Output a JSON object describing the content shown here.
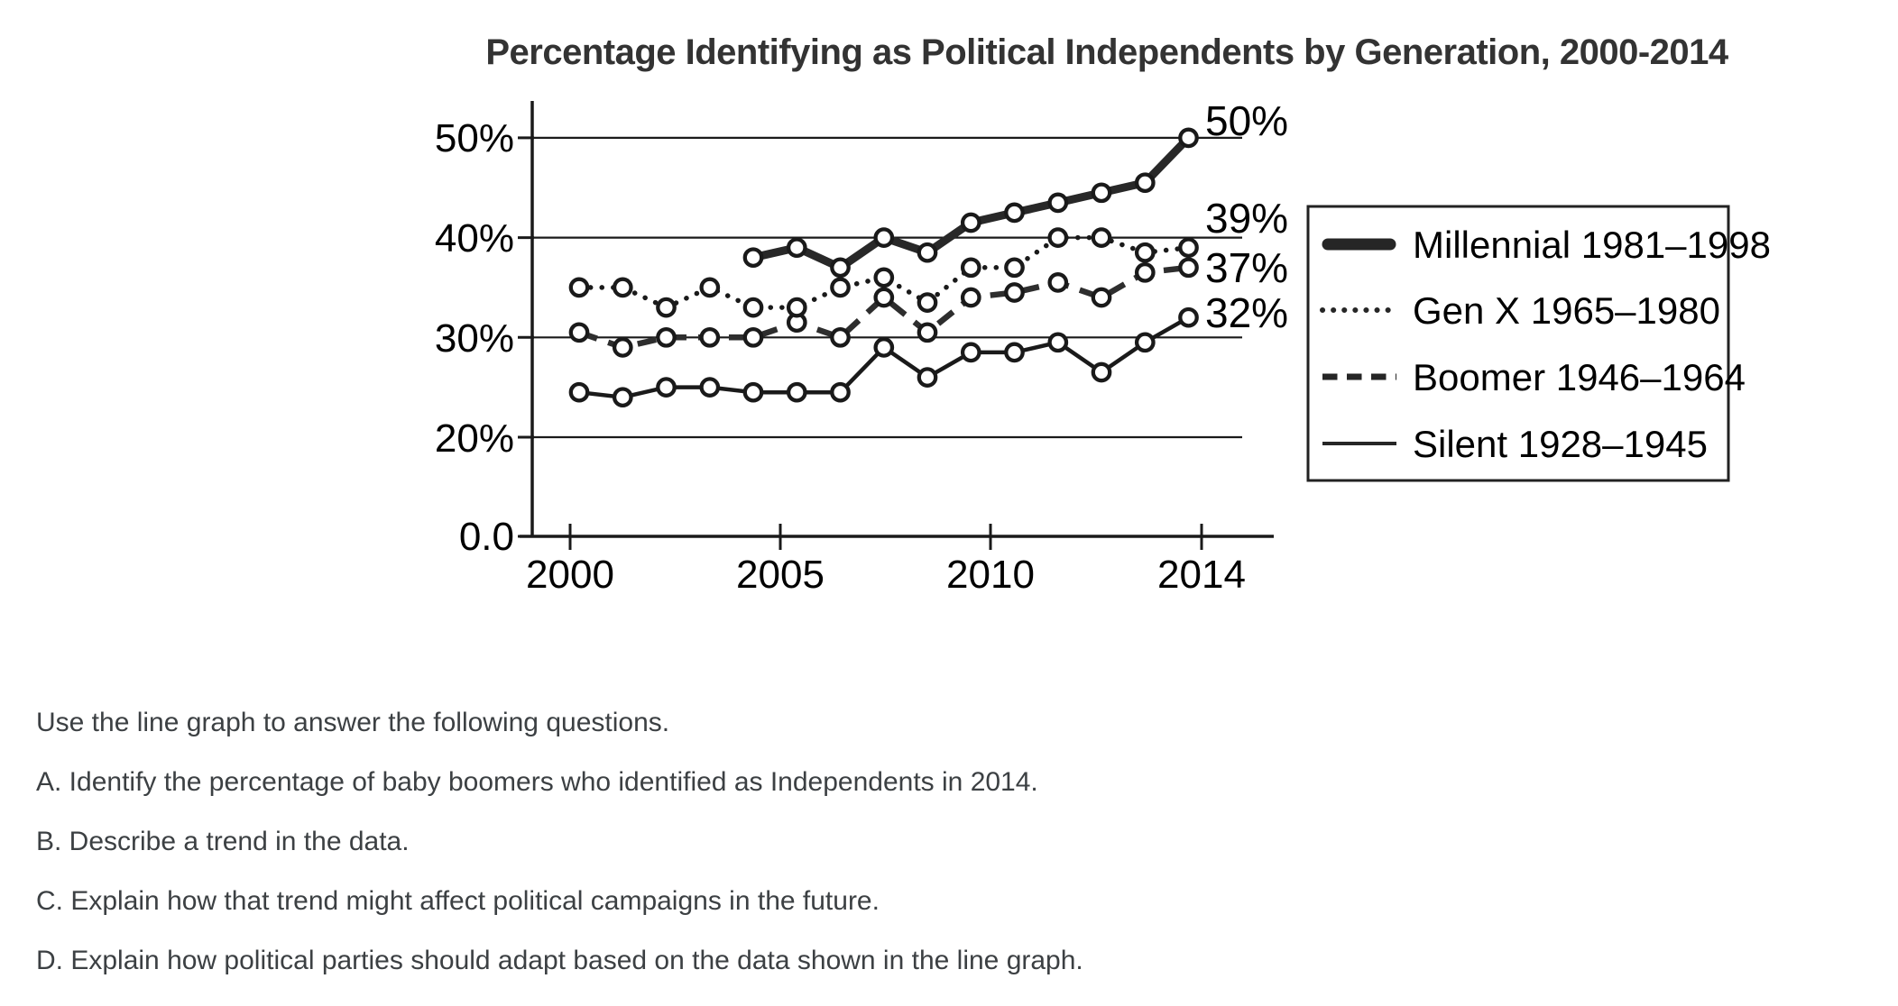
{
  "chart_data": {
    "type": "line",
    "title": "Percentage Identifying as Political Independents by Generation, 2000-2014",
    "x": [
      2000,
      2001,
      2002,
      2003,
      2004,
      2005,
      2006,
      2007,
      2008,
      2009,
      2010,
      2011,
      2012,
      2013,
      2014
    ],
    "xticks": [
      "2000",
      "2005",
      "2010",
      "2014"
    ],
    "yticks": [
      "50%",
      "40%",
      "30%",
      "20%",
      "0.0"
    ],
    "ylim": [
      0,
      50
    ],
    "y_axis_note": "broken axis: 0.0 baseline, then evenly spaced 20%-50% gridlines",
    "grid": "horizontal",
    "legend_position": "right",
    "series": [
      {
        "id": "millennial",
        "name": "Millennial 1981–1998",
        "style": "thick-solid",
        "end_label": "50%",
        "values": [
          null,
          null,
          null,
          null,
          38,
          39,
          37,
          40,
          38.5,
          41.5,
          42.5,
          43.5,
          44.5,
          45.5,
          50
        ]
      },
      {
        "id": "genx",
        "name": "Gen X 1965–1980",
        "style": "dotted",
        "end_label": "39%",
        "values": [
          35,
          35,
          33,
          35,
          33,
          33,
          35,
          36,
          33.5,
          37,
          37,
          40,
          40,
          38.5,
          39
        ]
      },
      {
        "id": "boomer",
        "name": "Boomer 1946–1964",
        "style": "dashed",
        "end_label": "37%",
        "values": [
          30.5,
          29,
          30,
          30,
          30,
          31.5,
          30,
          34,
          30.5,
          34,
          34.5,
          35.5,
          34,
          36.5,
          37
        ]
      },
      {
        "id": "silent",
        "name": "Silent 1928–1945",
        "style": "thin-solid",
        "end_label": "32%",
        "values": [
          24.5,
          24,
          25,
          25,
          24.5,
          24.5,
          24.5,
          29,
          26,
          28.5,
          28.5,
          29.5,
          26.5,
          29.5,
          32
        ]
      }
    ],
    "colors": {
      "line": "#1a1a1a",
      "thick_line": "#282828",
      "marker_fill": "#ffffff",
      "text": "#000000"
    }
  },
  "questions": {
    "intro": "Use the line graph to answer the following questions.",
    "items": [
      "A. Identify the percentage of baby boomers who identified as Independents in 2014.",
      "B. Describe a trend in the data.",
      "C. Explain how that trend might affect political campaigns in the future.",
      "D. Explain how political parties should adapt based on the data shown in the line graph."
    ]
  }
}
